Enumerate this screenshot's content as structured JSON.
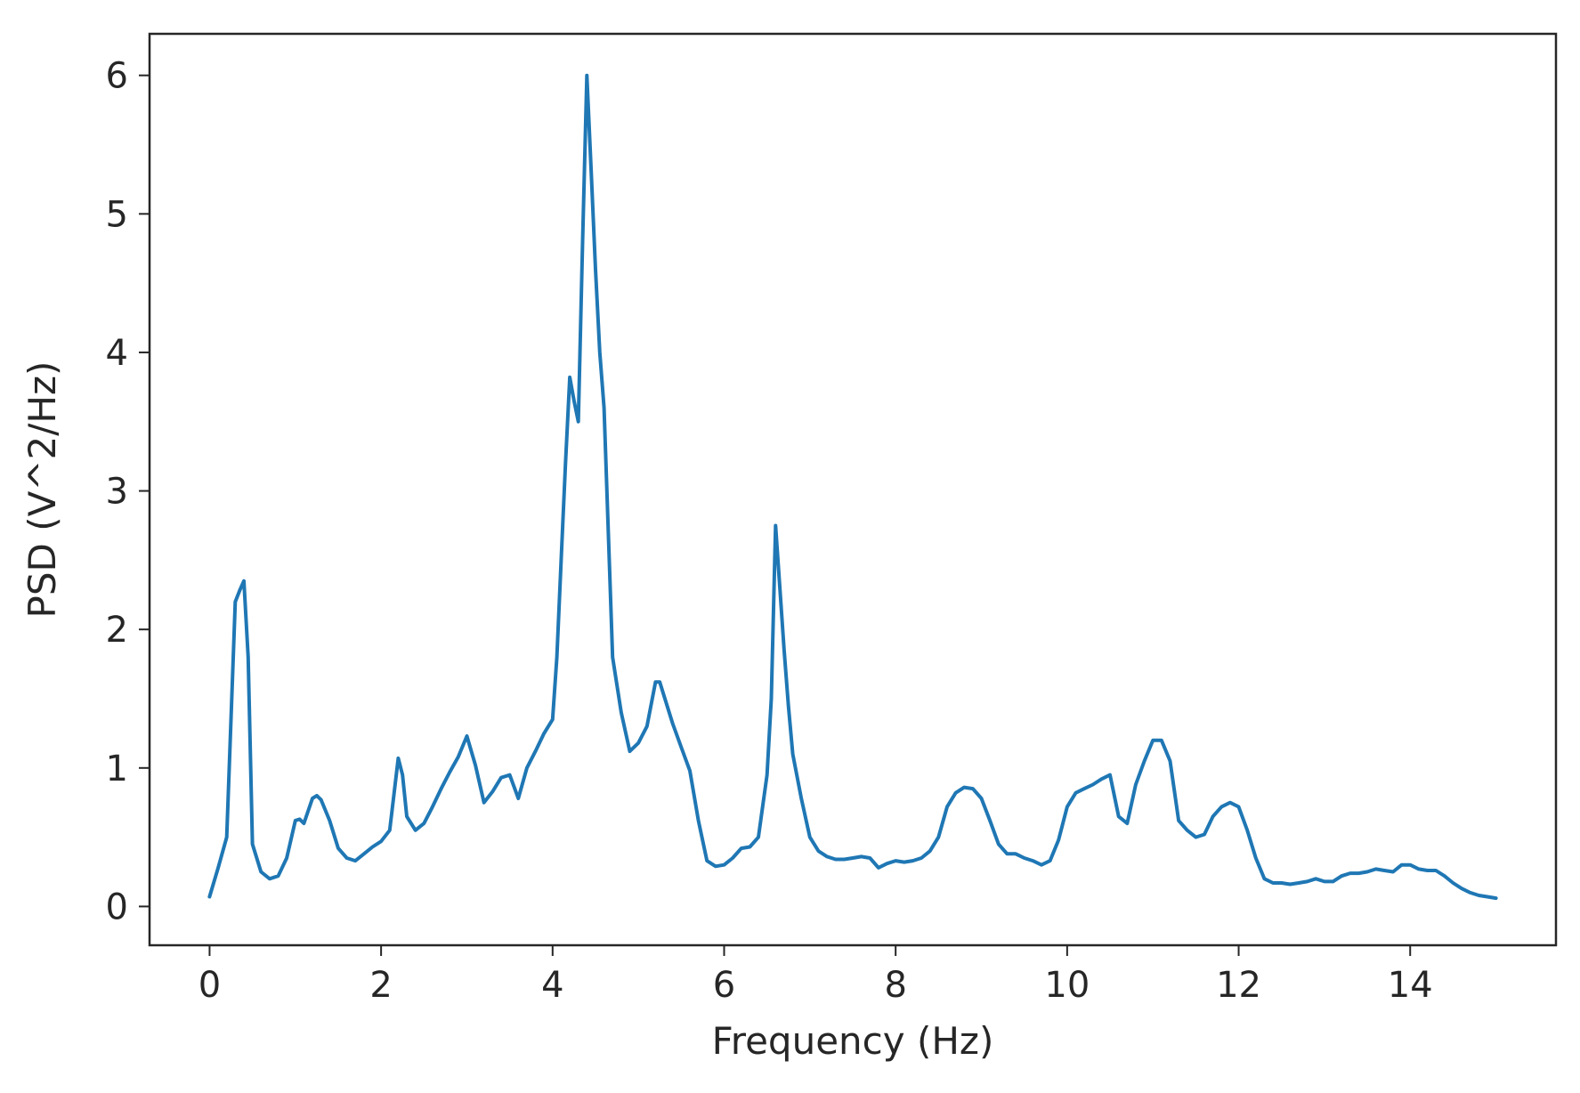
{
  "chart_data": {
    "type": "line",
    "title": "",
    "xlabel": "Frequency (Hz)",
    "ylabel": "PSD (V^2/Hz)",
    "xlim": [
      -0.7,
      15.7
    ],
    "ylim": [
      -0.28,
      6.3
    ],
    "xticks": [
      0,
      2,
      4,
      6,
      8,
      10,
      12,
      14
    ],
    "yticks": [
      0,
      1,
      2,
      3,
      4,
      5,
      6
    ],
    "grid": false,
    "legend": "none",
    "series": [
      {
        "color": "#1f77b4",
        "x": [
          0,
          0.1,
          0.2,
          0.3,
          0.35,
          0.4,
          0.45,
          0.5,
          0.6,
          0.7,
          0.8,
          0.9,
          1.0,
          1.05,
          1.1,
          1.2,
          1.25,
          1.3,
          1.4,
          1.5,
          1.6,
          1.7,
          1.8,
          1.9,
          2.0,
          2.1,
          2.2,
          2.25,
          2.3,
          2.4,
          2.5,
          2.6,
          2.7,
          2.8,
          2.9,
          3.0,
          3.1,
          3.2,
          3.3,
          3.4,
          3.5,
          3.6,
          3.7,
          3.8,
          3.9,
          4.0,
          4.05,
          4.1,
          4.15,
          4.2,
          4.25,
          4.3,
          4.35,
          4.4,
          4.45,
          4.5,
          4.55,
          4.6,
          4.7,
          4.8,
          4.9,
          5.0,
          5.1,
          5.2,
          5.25,
          5.3,
          5.4,
          5.5,
          5.6,
          5.7,
          5.8,
          5.9,
          6.0,
          6.1,
          6.2,
          6.3,
          6.4,
          6.5,
          6.55,
          6.6,
          6.65,
          6.7,
          6.75,
          6.8,
          6.9,
          7.0,
          7.1,
          7.2,
          7.3,
          7.4,
          7.5,
          7.6,
          7.7,
          7.8,
          7.9,
          8.0,
          8.1,
          8.2,
          8.3,
          8.4,
          8.5,
          8.6,
          8.7,
          8.8,
          8.9,
          9.0,
          9.1,
          9.2,
          9.3,
          9.4,
          9.5,
          9.6,
          9.7,
          9.8,
          9.9,
          10.0,
          10.1,
          10.2,
          10.3,
          10.4,
          10.5,
          10.6,
          10.7,
          10.8,
          10.9,
          11.0,
          11.1,
          11.2,
          11.3,
          11.4,
          11.5,
          11.6,
          11.7,
          11.8,
          11.9,
          12.0,
          12.1,
          12.2,
          12.3,
          12.4,
          12.5,
          12.6,
          12.7,
          12.8,
          12.9,
          13.0,
          13.1,
          13.2,
          13.3,
          13.4,
          13.5,
          13.6,
          13.7,
          13.8,
          13.9,
          14.0,
          14.1,
          14.2,
          14.3,
          14.4,
          14.5,
          14.6,
          14.7,
          14.8,
          14.9,
          15.0
        ],
        "y": [
          0.07,
          0.28,
          0.5,
          2.2,
          2.28,
          2.35,
          1.8,
          0.45,
          0.25,
          0.2,
          0.22,
          0.35,
          0.62,
          0.63,
          0.6,
          0.78,
          0.8,
          0.77,
          0.62,
          0.42,
          0.35,
          0.33,
          0.38,
          0.43,
          0.47,
          0.55,
          1.07,
          0.95,
          0.65,
          0.55,
          0.6,
          0.72,
          0.85,
          0.97,
          1.08,
          1.23,
          1.02,
          0.75,
          0.83,
          0.93,
          0.95,
          0.78,
          1.0,
          1.12,
          1.25,
          1.35,
          1.8,
          2.5,
          3.2,
          3.82,
          3.65,
          3.5,
          4.8,
          6.0,
          5.3,
          4.6,
          4.0,
          3.6,
          1.8,
          1.4,
          1.12,
          1.18,
          1.3,
          1.62,
          1.62,
          1.52,
          1.32,
          1.15,
          0.98,
          0.62,
          0.33,
          0.29,
          0.3,
          0.35,
          0.42,
          0.43,
          0.5,
          0.95,
          1.5,
          2.75,
          2.3,
          1.85,
          1.45,
          1.1,
          0.78,
          0.5,
          0.4,
          0.36,
          0.34,
          0.34,
          0.35,
          0.36,
          0.35,
          0.28,
          0.31,
          0.33,
          0.32,
          0.33,
          0.35,
          0.4,
          0.5,
          0.72,
          0.82,
          0.86,
          0.85,
          0.78,
          0.62,
          0.45,
          0.38,
          0.38,
          0.35,
          0.33,
          0.3,
          0.33,
          0.48,
          0.72,
          0.82,
          0.85,
          0.88,
          0.92,
          0.95,
          0.65,
          0.6,
          0.88,
          1.05,
          1.2,
          1.2,
          1.05,
          0.62,
          0.55,
          0.5,
          0.52,
          0.65,
          0.72,
          0.75,
          0.72,
          0.55,
          0.35,
          0.2,
          0.17,
          0.17,
          0.16,
          0.17,
          0.18,
          0.2,
          0.18,
          0.18,
          0.22,
          0.24,
          0.24,
          0.25,
          0.27,
          0.26,
          0.25,
          0.3,
          0.3,
          0.27,
          0.26,
          0.26,
          0.22,
          0.17,
          0.13,
          0.1,
          0.08,
          0.07,
          0.06
        ]
      }
    ]
  }
}
